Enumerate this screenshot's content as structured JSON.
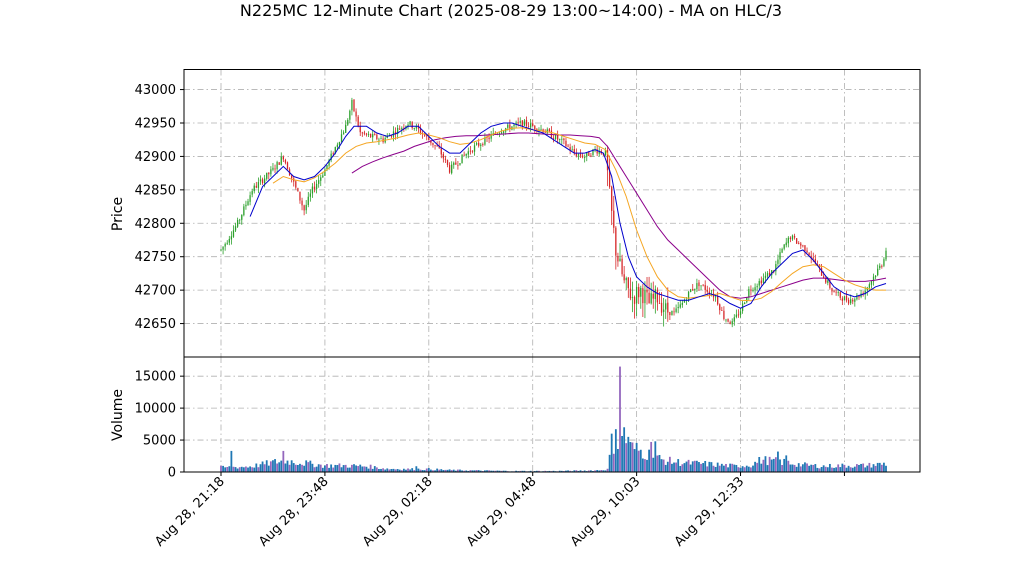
{
  "chart_data": {
    "type": "candlestick",
    "title": "N225MC 12-Minute Chart (2025-08-29 13:00~14:00) - MA on HLC/3",
    "price_panel": {
      "ylabel": "Price",
      "ylim": [
        42600,
        43030
      ],
      "yticks": [
        43000,
        42950,
        42900,
        42850,
        42800,
        42750,
        42700,
        42650
      ]
    },
    "volume_panel": {
      "ylabel": "Volume",
      "ylim": [
        0,
        18000
      ],
      "yticks": [
        15000,
        10000,
        5000,
        0
      ]
    },
    "x_tick_labels": [
      "Aug 28, 21:18",
      "Aug 28, 23:48",
      "Aug 29, 02:18",
      "Aug 29, 04:48",
      "Aug 29, 10:03",
      "Aug 29, 12:33"
    ],
    "grid": true,
    "colors": {
      "up": "#2ca02c",
      "down": "#d62728",
      "ma_fast": "#0000cc",
      "ma_mid": "#f5a623",
      "ma_slow": "#8b008b",
      "volume_up": "#1f77b4",
      "volume_down": "#9467bd",
      "grid": "#b0b0b0"
    },
    "price_path": [
      [
        0,
        42760
      ],
      [
        8,
        42800
      ],
      [
        15,
        42850
      ],
      [
        25,
        42880
      ],
      [
        30,
        42900
      ],
      [
        35,
        42860
      ],
      [
        40,
        42820
      ],
      [
        44,
        42850
      ],
      [
        50,
        42880
      ],
      [
        56,
        42920
      ],
      [
        60,
        42945
      ],
      [
        63,
        42980
      ],
      [
        67,
        42935
      ],
      [
        72,
        42930
      ],
      [
        78,
        42925
      ],
      [
        85,
        42940
      ],
      [
        90,
        42950
      ],
      [
        95,
        42940
      ],
      [
        100,
        42925
      ],
      [
        105,
        42910
      ],
      [
        110,
        42880
      ],
      [
        115,
        42895
      ],
      [
        120,
        42910
      ],
      [
        125,
        42920
      ],
      [
        130,
        42930
      ],
      [
        135,
        42940
      ],
      [
        140,
        42945
      ],
      [
        145,
        42950
      ],
      [
        150,
        42945
      ],
      [
        155,
        42940
      ],
      [
        160,
        42930
      ],
      [
        165,
        42920
      ],
      [
        170,
        42905
      ],
      [
        175,
        42900
      ],
      [
        180,
        42910
      ],
      [
        185,
        42905
      ],
      [
        187,
        42840
      ],
      [
        190,
        42760
      ],
      [
        194,
        42710
      ],
      [
        198,
        42690
      ],
      [
        202,
        42700
      ],
      [
        206,
        42680
      ],
      [
        210,
        42690
      ],
      [
        214,
        42670
      ],
      [
        218,
        42665
      ],
      [
        222,
        42680
      ],
      [
        226,
        42700
      ],
      [
        230,
        42710
      ],
      [
        234,
        42700
      ],
      [
        238,
        42690
      ],
      [
        242,
        42660
      ],
      [
        246,
        42650
      ],
      [
        250,
        42670
      ],
      [
        254,
        42700
      ],
      [
        258,
        42710
      ],
      [
        262,
        42720
      ],
      [
        266,
        42730
      ],
      [
        270,
        42760
      ],
      [
        274,
        42780
      ],
      [
        278,
        42770
      ],
      [
        282,
        42760
      ],
      [
        286,
        42740
      ],
      [
        290,
        42720
      ],
      [
        294,
        42700
      ],
      [
        298,
        42690
      ],
      [
        302,
        42685
      ],
      [
        306,
        42690
      ],
      [
        310,
        42700
      ],
      [
        314,
        42720
      ],
      [
        318,
        42740
      ],
      [
        320,
        42760
      ]
    ],
    "ma_fast": [
      [
        14,
        42810
      ],
      [
        20,
        42855
      ],
      [
        25,
        42870
      ],
      [
        30,
        42885
      ],
      [
        35,
        42870
      ],
      [
        40,
        42865
      ],
      [
        45,
        42870
      ],
      [
        50,
        42885
      ],
      [
        55,
        42905
      ],
      [
        60,
        42930
      ],
      [
        64,
        42945
      ],
      [
        70,
        42945
      ],
      [
        75,
        42935
      ],
      [
        80,
        42930
      ],
      [
        85,
        42935
      ],
      [
        90,
        42945
      ],
      [
        95,
        42945
      ],
      [
        100,
        42930
      ],
      [
        105,
        42915
      ],
      [
        110,
        42905
      ],
      [
        115,
        42905
      ],
      [
        120,
        42920
      ],
      [
        125,
        42935
      ],
      [
        130,
        42945
      ],
      [
        136,
        42950
      ],
      [
        140,
        42950
      ],
      [
        145,
        42945
      ],
      [
        150,
        42940
      ],
      [
        155,
        42935
      ],
      [
        160,
        42925
      ],
      [
        165,
        42915
      ],
      [
        170,
        42905
      ],
      [
        175,
        42905
      ],
      [
        180,
        42910
      ],
      [
        184,
        42905
      ],
      [
        188,
        42870
      ],
      [
        192,
        42800
      ],
      [
        196,
        42750
      ],
      [
        200,
        42720
      ],
      [
        205,
        42705
      ],
      [
        210,
        42695
      ],
      [
        215,
        42690
      ],
      [
        220,
        42685
      ],
      [
        225,
        42685
      ],
      [
        230,
        42690
      ],
      [
        235,
        42695
      ],
      [
        240,
        42690
      ],
      [
        245,
        42680
      ],
      [
        250,
        42673
      ],
      [
        255,
        42680
      ],
      [
        260,
        42705
      ],
      [
        265,
        42725
      ],
      [
        270,
        42740
      ],
      [
        275,
        42755
      ],
      [
        280,
        42760
      ],
      [
        285,
        42745
      ],
      [
        290,
        42725
      ],
      [
        295,
        42705
      ],
      [
        300,
        42695
      ],
      [
        305,
        42690
      ],
      [
        310,
        42695
      ],
      [
        315,
        42705
      ],
      [
        320,
        42710
      ]
    ],
    "ma_mid": [
      [
        25,
        42860
      ],
      [
        30,
        42870
      ],
      [
        35,
        42865
      ],
      [
        40,
        42862
      ],
      [
        45,
        42868
      ],
      [
        50,
        42878
      ],
      [
        55,
        42890
      ],
      [
        60,
        42905
      ],
      [
        65,
        42915
      ],
      [
        70,
        42920
      ],
      [
        75,
        42922
      ],
      [
        80,
        42925
      ],
      [
        85,
        42928
      ],
      [
        90,
        42932
      ],
      [
        95,
        42935
      ],
      [
        100,
        42932
      ],
      [
        105,
        42928
      ],
      [
        110,
        42922
      ],
      [
        115,
        42918
      ],
      [
        120,
        42920
      ],
      [
        125,
        42925
      ],
      [
        130,
        42932
      ],
      [
        135,
        42938
      ],
      [
        140,
        42942
      ],
      [
        145,
        42943
      ],
      [
        150,
        42940
      ],
      [
        155,
        42938
      ],
      [
        160,
        42935
      ],
      [
        165,
        42930
      ],
      [
        170,
        42925
      ],
      [
        175,
        42920
      ],
      [
        180,
        42918
      ],
      [
        185,
        42910
      ],
      [
        190,
        42880
      ],
      [
        195,
        42840
      ],
      [
        200,
        42790
      ],
      [
        205,
        42750
      ],
      [
        210,
        42720
      ],
      [
        215,
        42700
      ],
      [
        220,
        42690
      ],
      [
        225,
        42688
      ],
      [
        230,
        42690
      ],
      [
        235,
        42692
      ],
      [
        240,
        42695
      ],
      [
        245,
        42690
      ],
      [
        250,
        42685
      ],
      [
        255,
        42684
      ],
      [
        260,
        42688
      ],
      [
        265,
        42698
      ],
      [
        270,
        42712
      ],
      [
        275,
        42725
      ],
      [
        280,
        42735
      ],
      [
        285,
        42738
      ],
      [
        290,
        42735
      ],
      [
        295,
        42725
      ],
      [
        300,
        42715
      ],
      [
        305,
        42708
      ],
      [
        310,
        42703
      ],
      [
        315,
        42700
      ],
      [
        320,
        42700
      ]
    ],
    "ma_slow": [
      [
        63,
        42875
      ],
      [
        68,
        42885
      ],
      [
        73,
        42892
      ],
      [
        78,
        42898
      ],
      [
        83,
        42903
      ],
      [
        88,
        42908
      ],
      [
        93,
        42915
      ],
      [
        98,
        42920
      ],
      [
        103,
        42925
      ],
      [
        108,
        42928
      ],
      [
        113,
        42930
      ],
      [
        118,
        42931
      ],
      [
        123,
        42931
      ],
      [
        128,
        42932
      ],
      [
        133,
        42933
      ],
      [
        138,
        42934
      ],
      [
        143,
        42935
      ],
      [
        148,
        42935
      ],
      [
        153,
        42934
      ],
      [
        158,
        42933
      ],
      [
        163,
        42932
      ],
      [
        168,
        42932
      ],
      [
        173,
        42931
      ],
      [
        178,
        42930
      ],
      [
        182,
        42928
      ],
      [
        186,
        42915
      ],
      [
        190,
        42895
      ],
      [
        195,
        42870
      ],
      [
        200,
        42845
      ],
      [
        205,
        42820
      ],
      [
        210,
        42795
      ],
      [
        215,
        42775
      ],
      [
        220,
        42760
      ],
      [
        225,
        42745
      ],
      [
        230,
        42730
      ],
      [
        235,
        42715
      ],
      [
        240,
        42700
      ],
      [
        245,
        42690
      ],
      [
        250,
        42688
      ],
      [
        255,
        42690
      ],
      [
        260,
        42695
      ],
      [
        265,
        42700
      ],
      [
        270,
        42705
      ],
      [
        275,
        42710
      ],
      [
        280,
        42715
      ],
      [
        285,
        42718
      ],
      [
        290,
        42718
      ],
      [
        295,
        42716
      ],
      [
        300,
        42714
      ],
      [
        305,
        42713
      ],
      [
        310,
        42713
      ],
      [
        315,
        42715
      ],
      [
        320,
        42718
      ]
    ],
    "volume_profile": [
      [
        0,
        700
      ],
      [
        10,
        800
      ],
      [
        15,
        900
      ],
      [
        25,
        1500
      ],
      [
        30,
        1800
      ],
      [
        40,
        1400
      ],
      [
        50,
        1000
      ],
      [
        60,
        1000
      ],
      [
        70,
        900
      ],
      [
        80,
        500
      ],
      [
        90,
        450
      ],
      [
        100,
        450
      ],
      [
        110,
        300
      ],
      [
        120,
        250
      ],
      [
        130,
        200
      ],
      [
        140,
        150
      ],
      [
        150,
        150
      ],
      [
        160,
        150
      ],
      [
        170,
        200
      ],
      [
        180,
        250
      ],
      [
        186,
        400
      ],
      [
        188,
        4500
      ],
      [
        192,
        4800
      ],
      [
        196,
        4000
      ],
      [
        200,
        3500
      ],
      [
        204,
        3000
      ],
      [
        208,
        2500
      ],
      [
        212,
        1900
      ],
      [
        218,
        1600
      ],
      [
        225,
        1400
      ],
      [
        232,
        1300
      ],
      [
        240,
        1100
      ],
      [
        248,
        900
      ],
      [
        255,
        1100
      ],
      [
        260,
        1900
      ],
      [
        266,
        1700
      ],
      [
        272,
        1500
      ],
      [
        280,
        1100
      ],
      [
        290,
        900
      ],
      [
        300,
        1000
      ],
      [
        310,
        1000
      ],
      [
        320,
        1300
      ]
    ],
    "volume_spikes": [
      [
        5,
        3300
      ],
      [
        30,
        3300
      ],
      [
        94,
        900
      ],
      [
        190,
        6700
      ],
      [
        192,
        16500
      ],
      [
        194,
        7000
      ],
      [
        196,
        5500
      ],
      [
        207,
        4700
      ],
      [
        209,
        4800
      ],
      [
        268,
        3200
      ],
      [
        272,
        2600
      ]
    ]
  }
}
